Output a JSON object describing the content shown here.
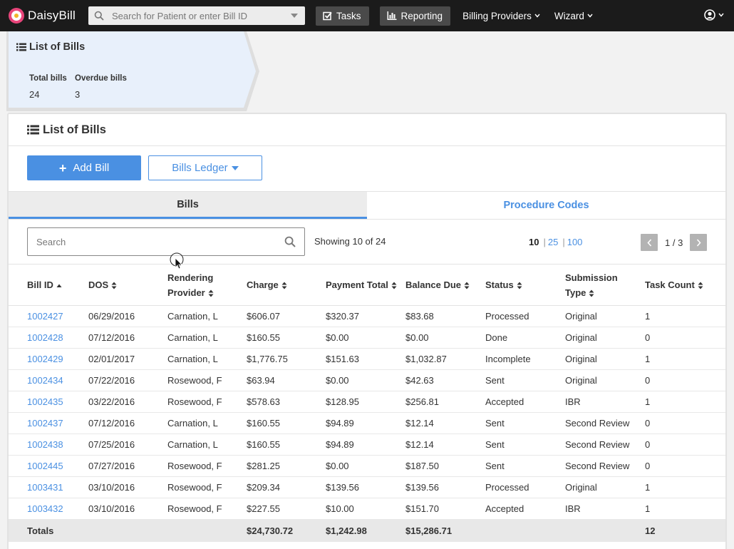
{
  "app": {
    "brand": "DaisyBill",
    "search_placeholder": "Search for Patient or enter Bill ID",
    "nav": {
      "tasks": "Tasks",
      "reporting": "Reporting",
      "billing_providers": "Billing Providers",
      "wizard": "Wizard"
    }
  },
  "summary": {
    "title": "List of Bills",
    "total_label": "Total bills",
    "total_value": "24",
    "overdue_label": "Overdue bills",
    "overdue_value": "3"
  },
  "panel": {
    "title": "List of Bills",
    "add_bill": "Add Bill",
    "bills_ledger": "Bills Ledger",
    "tabs": [
      "Bills",
      "Procedure Codes"
    ],
    "search_placeholder": "Search",
    "showing": "Showing 10 of 24",
    "page_sizes": [
      "10",
      "25",
      "100"
    ],
    "page_indicator": "1 / 3"
  },
  "table": {
    "headers": {
      "bill_id": "Bill ID",
      "dos": "DOS",
      "provider_1": "Rendering",
      "provider_2": "Provider",
      "charge": "Charge",
      "payment_total": "Payment Total",
      "balance_due": "Balance Due",
      "status": "Status",
      "submission_1": "Submission",
      "submission_2": "Type",
      "task_count": "Task Count"
    },
    "rows": [
      [
        "1002427",
        "06/29/2016",
        "Carnation, L",
        "$606.07",
        "$320.37",
        "$83.68",
        "Processed",
        "Original",
        "1"
      ],
      [
        "1002428",
        "07/12/2016",
        "Carnation, L",
        "$160.55",
        "$0.00",
        "$0.00",
        "Done",
        "Original",
        "0"
      ],
      [
        "1002429",
        "02/01/2017",
        "Carnation, L",
        "$1,776.75",
        "$151.63",
        "$1,032.87",
        "Incomplete",
        "Original",
        "1"
      ],
      [
        "1002434",
        "07/22/2016",
        "Rosewood, F",
        "$63.94",
        "$0.00",
        "$42.63",
        "Sent",
        "Original",
        "0"
      ],
      [
        "1002435",
        "03/22/2016",
        "Rosewood, F",
        "$578.63",
        "$128.95",
        "$256.81",
        "Accepted",
        "IBR",
        "1"
      ],
      [
        "1002437",
        "07/12/2016",
        "Carnation, L",
        "$160.55",
        "$94.89",
        "$12.14",
        "Sent",
        "Second Review",
        "0"
      ],
      [
        "1002438",
        "07/25/2016",
        "Carnation, L",
        "$160.55",
        "$94.89",
        "$12.14",
        "Sent",
        "Second Review",
        "0"
      ],
      [
        "1002445",
        "07/27/2016",
        "Rosewood, F",
        "$281.25",
        "$0.00",
        "$187.50",
        "Sent",
        "Second Review",
        "0"
      ],
      [
        "1003431",
        "03/10/2016",
        "Rosewood, F",
        "$209.34",
        "$139.56",
        "$139.56",
        "Processed",
        "Original",
        "1"
      ],
      [
        "1003432",
        "03/10/2016",
        "Rosewood, F",
        "$227.55",
        "$10.00",
        "$151.70",
        "Accepted",
        "IBR",
        "1"
      ]
    ],
    "totals": {
      "label": "Totals",
      "charge": "$24,730.72",
      "payment_total": "$1,242.98",
      "balance_due": "$15,286.71",
      "task_count": "12"
    }
  },
  "colors": {
    "navbar": "#1b1b1b",
    "accent": "#4a90e2",
    "summary_bg": "#e8f0fb"
  }
}
